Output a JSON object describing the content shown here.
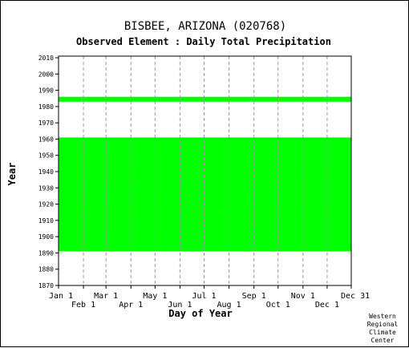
{
  "header": {
    "title": "BISBEE, ARIZONA   (020768)",
    "subtitle": "Observed Element : Daily Total Precipitation"
  },
  "credit": [
    "Western",
    "Regional",
    "Climate",
    "Center"
  ],
  "colors": {
    "data": "#00ff00",
    "gridline": "#999999",
    "axis": "#000000",
    "background": "#ffffff"
  },
  "chart_data": {
    "type": "heatmap",
    "title": "BISBEE, ARIZONA   (020768)",
    "subtitle": "Observed Element : Daily Total Precipitation",
    "xlabel": "Day of Year",
    "ylabel": "Year",
    "xlim": [
      1,
      365
    ],
    "ylim": [
      1870,
      2011
    ],
    "grid": "vertical dashed",
    "x_ticks_upper": [
      {
        "label": "Jan 1",
        "day": 1
      },
      {
        "label": "Mar 1",
        "day": 60
      },
      {
        "label": "May 1",
        "day": 121
      },
      {
        "label": "Jul 1",
        "day": 182
      },
      {
        "label": "Sep 1",
        "day": 244
      },
      {
        "label": "Nov 1",
        "day": 305
      },
      {
        "label": "Dec 31",
        "day": 365
      }
    ],
    "x_ticks_lower": [
      {
        "label": "Feb 1",
        "day": 32
      },
      {
        "label": "Apr 1",
        "day": 91
      },
      {
        "label": "Jun 1",
        "day": 152
      },
      {
        "label": "Aug 1",
        "day": 213
      },
      {
        "label": "Oct 1",
        "day": 274
      },
      {
        "label": "Dec 1",
        "day": 335
      }
    ],
    "y_ticks": [
      1870,
      1880,
      1890,
      1900,
      1910,
      1920,
      1930,
      1940,
      1950,
      1960,
      1970,
      1980,
      1990,
      2000,
      2010
    ],
    "coverage": [
      {
        "year_start": 1983,
        "year_end": 1986,
        "day_start": 1,
        "day_end": 365
      },
      {
        "year_start": 1891,
        "year_end": 1961,
        "day_start": 1,
        "day_end": 365
      }
    ]
  }
}
